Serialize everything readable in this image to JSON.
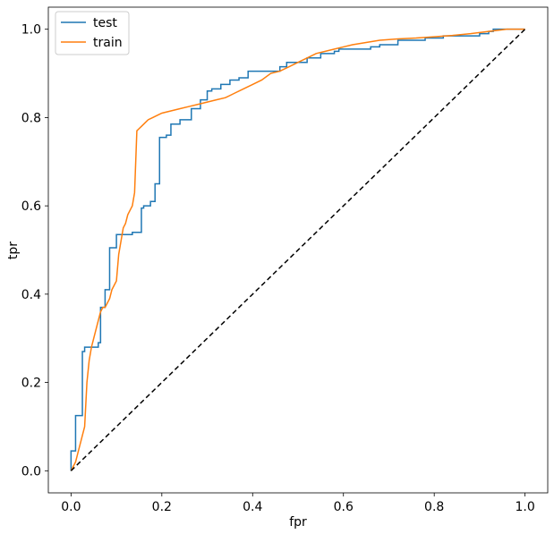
{
  "chart_data": {
    "type": "line",
    "title": "",
    "xlabel": "fpr",
    "ylabel": "tpr",
    "xlim": [
      -0.05,
      1.05
    ],
    "ylim": [
      -0.05,
      1.05
    ],
    "xticks": [
      "0.0",
      "0.2",
      "0.4",
      "0.6",
      "0.8",
      "1.0"
    ],
    "yticks": [
      "0.0",
      "0.2",
      "0.4",
      "0.6",
      "0.8",
      "1.0"
    ],
    "grid": false,
    "legend_position": "top-left",
    "colors": {
      "test": "#1f77b4",
      "train": "#ff7f0e",
      "diagonal": "#000000"
    },
    "series": [
      {
        "name": "test",
        "color": "#1f77b4",
        "line_style": "step",
        "x": [
          0.0,
          0.0,
          0.01,
          0.01,
          0.025,
          0.025,
          0.03,
          0.03,
          0.06,
          0.06,
          0.065,
          0.065,
          0.075,
          0.075,
          0.085,
          0.085,
          0.1,
          0.1,
          0.11,
          0.11,
          0.135,
          0.135,
          0.155,
          0.155,
          0.16,
          0.16,
          0.175,
          0.175,
          0.185,
          0.185,
          0.195,
          0.195,
          0.21,
          0.21,
          0.22,
          0.22,
          0.24,
          0.24,
          0.265,
          0.265,
          0.285,
          0.285,
          0.3,
          0.3,
          0.31,
          0.31,
          0.33,
          0.33,
          0.35,
          0.35,
          0.37,
          0.37,
          0.39,
          0.39,
          0.46,
          0.46,
          0.475,
          0.475,
          0.52,
          0.52,
          0.55,
          0.55,
          0.56,
          0.56,
          0.58,
          0.58,
          0.59,
          0.59,
          0.66,
          0.66,
          0.68,
          0.68,
          0.72,
          0.72,
          0.78,
          0.78,
          0.82,
          0.82,
          0.9,
          0.9,
          0.92,
          0.92,
          0.93,
          0.93,
          0.95,
          0.95,
          1.0
        ],
        "y": [
          0.0,
          0.045,
          0.045,
          0.125,
          0.125,
          0.27,
          0.27,
          0.28,
          0.28,
          0.29,
          0.29,
          0.37,
          0.37,
          0.41,
          0.41,
          0.505,
          0.505,
          0.535,
          0.535,
          0.535,
          0.535,
          0.54,
          0.54,
          0.595,
          0.595,
          0.6,
          0.6,
          0.61,
          0.61,
          0.65,
          0.65,
          0.755,
          0.755,
          0.76,
          0.76,
          0.785,
          0.785,
          0.795,
          0.795,
          0.82,
          0.82,
          0.84,
          0.84,
          0.86,
          0.86,
          0.865,
          0.865,
          0.875,
          0.875,
          0.885,
          0.885,
          0.89,
          0.89,
          0.905,
          0.905,
          0.915,
          0.915,
          0.925,
          0.925,
          0.935,
          0.935,
          0.945,
          0.945,
          0.945,
          0.945,
          0.95,
          0.95,
          0.955,
          0.955,
          0.96,
          0.96,
          0.965,
          0.965,
          0.975,
          0.975,
          0.98,
          0.98,
          0.985,
          0.985,
          0.99,
          0.99,
          0.995,
          0.995,
          1.0,
          1.0,
          1.0,
          1.0
        ]
      },
      {
        "name": "train",
        "color": "#ff7f0e",
        "line_style": "step",
        "x": [
          0.0,
          0.005,
          0.01,
          0.015,
          0.02,
          0.025,
          0.03,
          0.035,
          0.04,
          0.045,
          0.05,
          0.055,
          0.06,
          0.065,
          0.07,
          0.075,
          0.08,
          0.085,
          0.09,
          0.095,
          0.1,
          0.105,
          0.11,
          0.115,
          0.12,
          0.125,
          0.13,
          0.135,
          0.14,
          0.145,
          0.15,
          0.155,
          0.16,
          0.165,
          0.17,
          0.18,
          0.19,
          0.2,
          0.22,
          0.24,
          0.26,
          0.28,
          0.3,
          0.32,
          0.34,
          0.36,
          0.38,
          0.4,
          0.42,
          0.44,
          0.46,
          0.48,
          0.5,
          0.52,
          0.54,
          0.56,
          0.58,
          0.6,
          0.62,
          0.65,
          0.68,
          0.72,
          0.76,
          0.8,
          0.84,
          0.88,
          0.92,
          0.96,
          1.0
        ],
        "y": [
          0.0,
          0.01,
          0.02,
          0.04,
          0.06,
          0.08,
          0.1,
          0.2,
          0.25,
          0.28,
          0.3,
          0.32,
          0.34,
          0.36,
          0.37,
          0.37,
          0.38,
          0.39,
          0.41,
          0.42,
          0.43,
          0.49,
          0.52,
          0.55,
          0.56,
          0.58,
          0.59,
          0.6,
          0.63,
          0.77,
          0.775,
          0.78,
          0.785,
          0.79,
          0.795,
          0.8,
          0.805,
          0.81,
          0.815,
          0.82,
          0.825,
          0.83,
          0.835,
          0.84,
          0.845,
          0.855,
          0.865,
          0.875,
          0.885,
          0.9,
          0.905,
          0.915,
          0.925,
          0.935,
          0.945,
          0.95,
          0.955,
          0.96,
          0.965,
          0.97,
          0.975,
          0.978,
          0.98,
          0.983,
          0.986,
          0.99,
          0.995,
          1.0,
          1.0
        ]
      },
      {
        "name": "",
        "color": "#000000",
        "line_style": "dashed",
        "x": [
          0.0,
          1.0
        ],
        "y": [
          0.0,
          1.0
        ]
      }
    ]
  }
}
